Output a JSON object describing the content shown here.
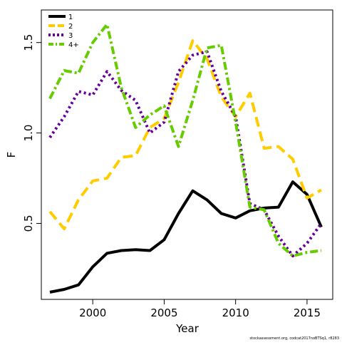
{
  "chart_data": {
    "type": "line",
    "title": "",
    "xlabel": "Year",
    "ylabel": "F",
    "xlim": [
      1996.4,
      2016.8
    ],
    "ylim": [
      0.08,
      1.68
    ],
    "xticks": [
      2000,
      2005,
      2010,
      2015
    ],
    "xtick_labels": [
      "2000",
      "2005",
      "2010",
      "2015"
    ],
    "yticks": [
      0.5,
      1.0,
      1.5
    ],
    "ytick_labels": [
      "0.5",
      "1.0",
      "1.5"
    ],
    "grid": false,
    "legend_position": "top-left",
    "x": [
      1997,
      1998,
      1999,
      2000,
      2001,
      2002,
      2003,
      2004,
      2005,
      2006,
      2007,
      2008,
      2009,
      2010,
      2011,
      2012,
      2013,
      2014,
      2015,
      2016
    ],
    "series": [
      {
        "name": "1",
        "color": "#000000",
        "dash": "solid",
        "values": [
          0.12,
          0.135,
          0.16,
          0.26,
          0.335,
          0.35,
          0.355,
          0.35,
          0.41,
          0.555,
          0.68,
          0.63,
          0.555,
          0.53,
          0.57,
          0.585,
          0.59,
          0.73,
          0.66,
          0.48
        ]
      },
      {
        "name": "2",
        "color": "#FFCC00",
        "dash": "long",
        "values": [
          0.565,
          0.47,
          0.63,
          0.735,
          0.75,
          0.865,
          0.875,
          1.03,
          1.08,
          1.28,
          1.51,
          1.41,
          1.2,
          1.09,
          1.22,
          0.915,
          0.925,
          0.855,
          0.64,
          0.685
        ]
      },
      {
        "name": "3",
        "color": "#660099",
        "dash": "dot",
        "values": [
          0.975,
          1.09,
          1.23,
          1.21,
          1.34,
          1.235,
          1.18,
          1.0,
          1.06,
          1.34,
          1.43,
          1.45,
          1.23,
          1.09,
          0.61,
          0.575,
          0.43,
          0.32,
          0.39,
          0.5
        ]
      },
      {
        "name": "4+",
        "color": "#66CC00",
        "dash": "dashdot",
        "values": [
          1.19,
          1.345,
          1.33,
          1.5,
          1.6,
          1.25,
          1.03,
          1.1,
          1.15,
          0.925,
          1.18,
          1.47,
          1.485,
          1.06,
          0.59,
          0.575,
          0.39,
          0.32,
          0.34,
          0.35
        ]
      }
    ]
  },
  "footer_text": "stockassessment.org, codcat2017noBTSq1, r8283"
}
